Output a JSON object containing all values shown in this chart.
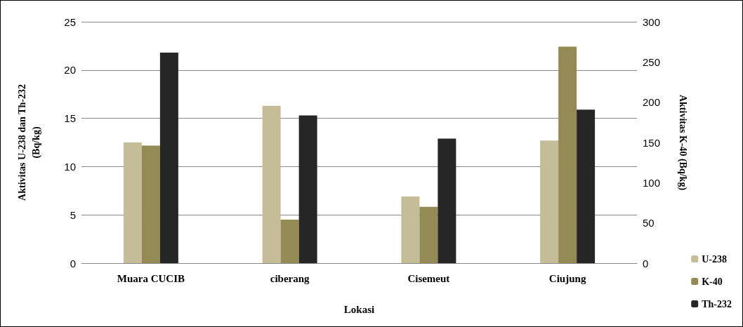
{
  "chart_data": {
    "type": "bar",
    "xlabel": "Lokasi",
    "ylabel": "Aktivitas U-238 dan Th-232 (Bq/kg)",
    "y2label": "Aktivitas K-40 (Bq/kg)",
    "categories": [
      "Muara CUCIB",
      "ciberang",
      "Cisemeut",
      "Ciujung"
    ],
    "series": [
      {
        "name": "U-238",
        "color": "#c4bd97",
        "values": [
          12.5,
          16.3,
          6.9,
          12.7
        ]
      },
      {
        "name": "K-40",
        "color": "#948a54",
        "values": [
          146,
          54,
          70,
          269
        ],
        "axis": "y2"
      },
      {
        "name": "Th-232",
        "color": "#262626",
        "values": [
          21.8,
          15.3,
          12.9,
          15.9
        ]
      }
    ],
    "ylim": [
      0,
      25
    ],
    "yticks": [
      0,
      5,
      10,
      15,
      20,
      25
    ],
    "y2lim": [
      0,
      300
    ],
    "y2ticks": [
      0,
      50,
      100,
      150,
      200,
      250,
      300
    ],
    "grid": "y",
    "legend": "bottom right"
  }
}
